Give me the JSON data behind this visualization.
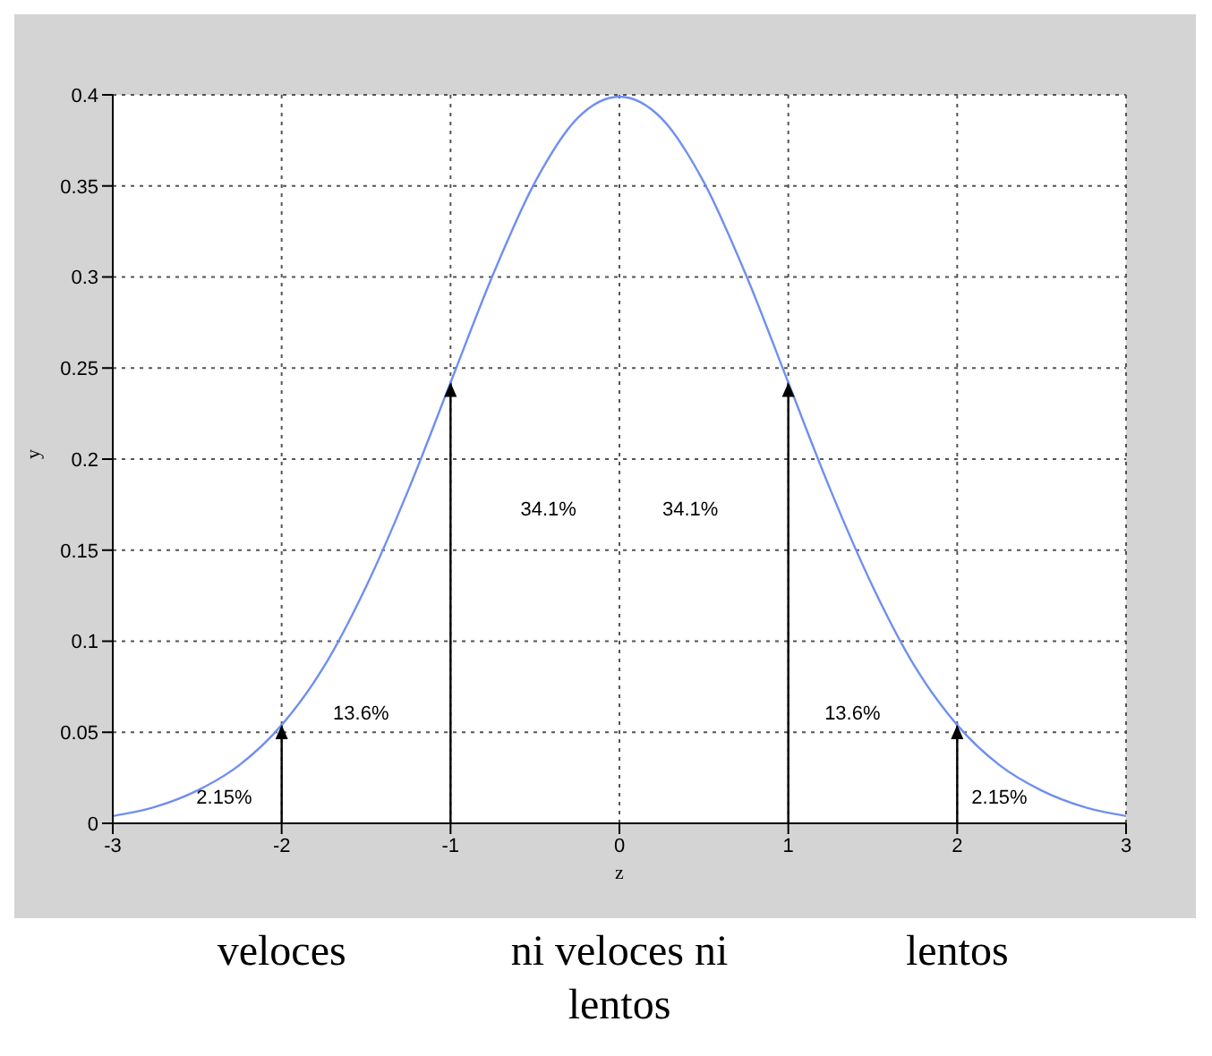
{
  "chart_data": {
    "type": "line",
    "xlabel": "z",
    "ylabel": "y",
    "x": [
      -3,
      -2.75,
      -2.5,
      -2.25,
      -2,
      -1.75,
      -1.5,
      -1.25,
      -1,
      -0.75,
      -0.5,
      -0.25,
      0,
      0.25,
      0.5,
      0.75,
      1,
      1.25,
      1.5,
      1.75,
      2,
      2.25,
      2.5,
      2.75,
      3
    ],
    "series": [
      {
        "color": "#6f8ff0",
        "values": [
          0.004,
          0.009,
          0.018,
          0.032,
          0.054,
          0.086,
          0.13,
          0.183,
          0.242,
          0.301,
          0.352,
          0.387,
          0.399,
          0.387,
          0.352,
          0.301,
          0.242,
          0.183,
          0.13,
          0.086,
          0.054,
          0.032,
          0.018,
          0.009,
          0.004
        ]
      }
    ],
    "xlim": [
      -3,
      3
    ],
    "xticks": [
      -3,
      -2,
      -1,
      0,
      1,
      2,
      3
    ],
    "ylim": [
      0,
      0.4
    ],
    "yticks": [
      0,
      0.05,
      0.1,
      0.15,
      0.2,
      0.25,
      0.3,
      0.35,
      0.4
    ],
    "grid": true,
    "marker": "none",
    "line_style": "solid",
    "ref_lines": [
      {
        "axis": "x",
        "value": -2,
        "color": "#000000"
      },
      {
        "axis": "x",
        "value": -1,
        "color": "#000000"
      },
      {
        "axis": "x",
        "value": 1,
        "color": "#000000"
      },
      {
        "axis": "x",
        "value": 2,
        "color": "#000000"
      }
    ],
    "annotations": [
      "2.15%",
      "13.6%",
      "34.1%",
      "34.1%",
      "13.6%",
      "2.15%",
      "veloces",
      "ni veloces ni lentos",
      "lentos"
    ]
  }
}
